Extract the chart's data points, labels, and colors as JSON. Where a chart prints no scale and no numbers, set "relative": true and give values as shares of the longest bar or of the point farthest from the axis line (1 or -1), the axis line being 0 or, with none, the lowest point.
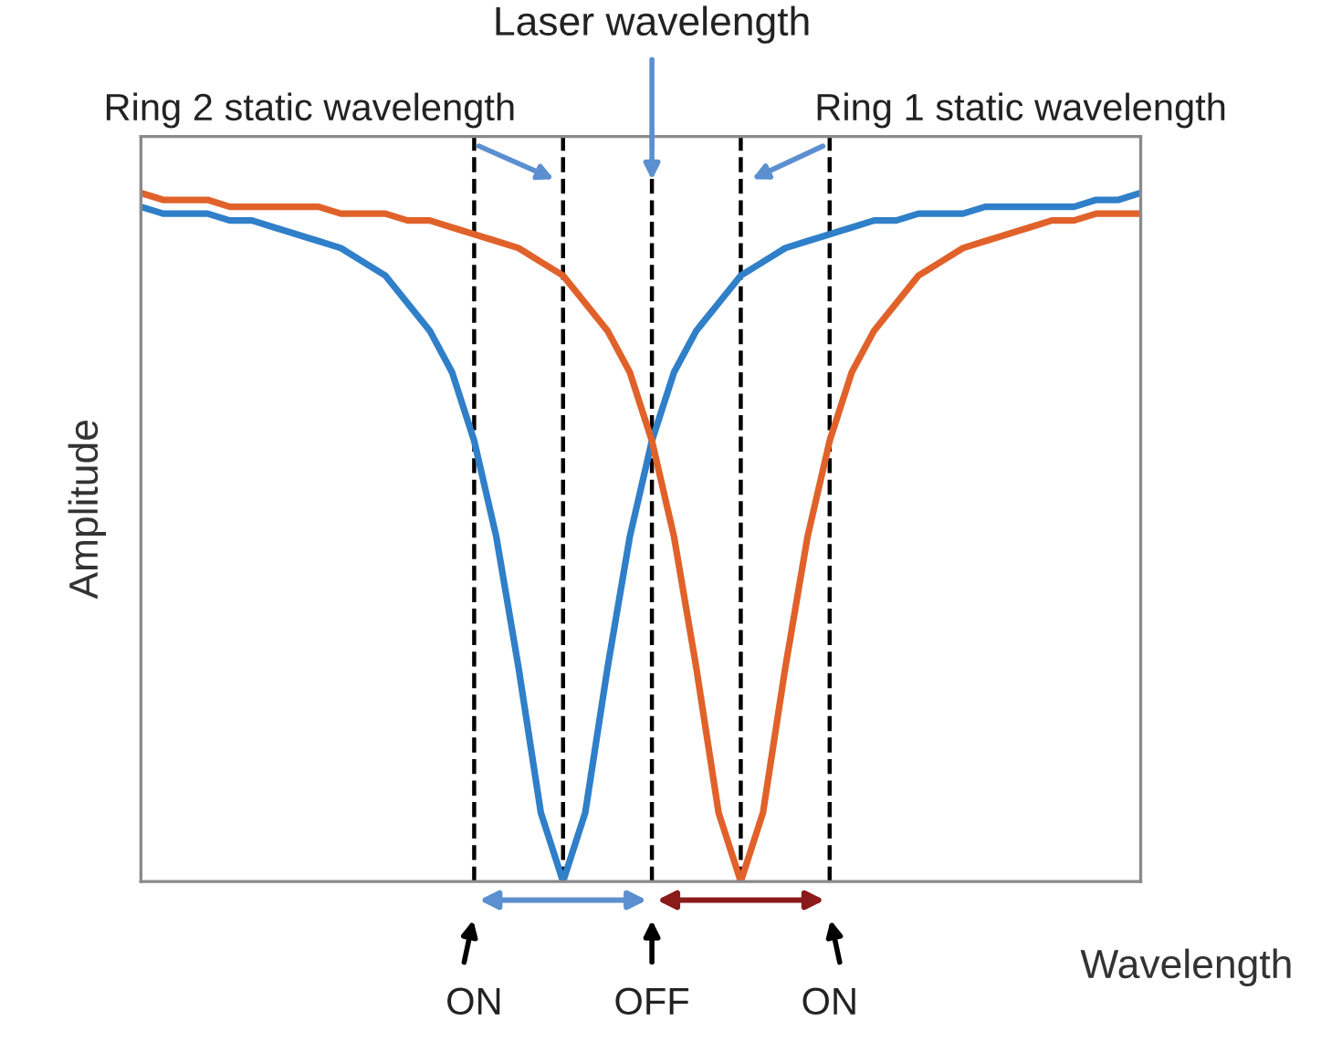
{
  "chart_data": {
    "type": "line",
    "relative": true,
    "xlabel": "Wavelength",
    "ylabel": "Amplitude",
    "categories": [
      null,
      null,
      null,
      null,
      null,
      null,
      null,
      null,
      null,
      null,
      null,
      null,
      null,
      null,
      null,
      null,
      null,
      null,
      null,
      null,
      null,
      null,
      null,
      null,
      null,
      null,
      null,
      null,
      null,
      null,
      null,
      null,
      null,
      null,
      null,
      null,
      null,
      null,
      null,
      null,
      null,
      null,
      null,
      null,
      null,
      null
    ],
    "series": [
      {
        "color": "#2f7fc9",
        "values": [
          0.98,
          0.97,
          0.97,
          0.97,
          0.96,
          0.96,
          0.95,
          0.94,
          0.93,
          0.92,
          0.9,
          0.88,
          0.84,
          0.8,
          0.74,
          0.64,
          0.5,
          0.31,
          0.1,
          0,
          0.1,
          0.31,
          0.5,
          0.64,
          0.74,
          0.8,
          0.84,
          0.88,
          0.9,
          0.92,
          0.93,
          0.94,
          0.95,
          0.96,
          0.96,
          0.97,
          0.97,
          0.97,
          0.98,
          0.98,
          0.98,
          0.98,
          0.98,
          0.99,
          0.99,
          1.0
        ]
      },
      {
        "color": "#e0622a",
        "values": [
          1.0,
          0.99,
          0.99,
          0.99,
          0.98,
          0.98,
          0.98,
          0.98,
          0.98,
          0.97,
          0.97,
          0.97,
          0.96,
          0.96,
          0.95,
          0.94,
          0.93,
          0.92,
          0.9,
          0.88,
          0.84,
          0.8,
          0.74,
          0.64,
          0.5,
          0.31,
          0.1,
          0,
          0.1,
          0.31,
          0.5,
          0.64,
          0.74,
          0.8,
          0.84,
          0.88,
          0.9,
          0.92,
          0.93,
          0.94,
          0.95,
          0.96,
          0.96,
          0.97,
          0.97,
          0.97
        ]
      }
    ],
    "annotations": [
      "Laser wavelength",
      "Ring 2 static wavelength",
      "Ring 1 static wavelength",
      "ON",
      "OFF",
      "ON"
    ],
    "line_style": "solid",
    "marker": "none",
    "grid": "x",
    "legend": false
  }
}
